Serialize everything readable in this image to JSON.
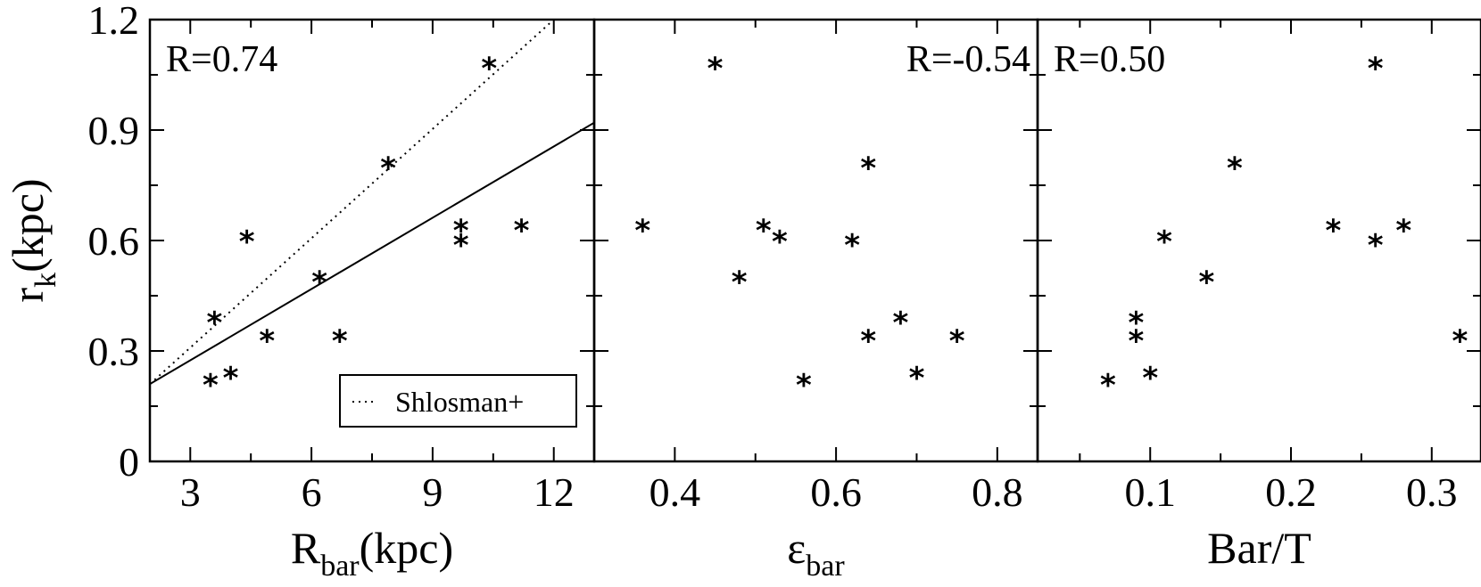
{
  "chart_data": [
    {
      "type": "scatter",
      "xlabel": "R",
      "xlabel_sub": "bar",
      "xlabel_suffix": "(kpc)",
      "ylabel": "r",
      "ylabel_sub": "k",
      "ylabel_suffix": "(kpc)",
      "xlim": [
        2,
        13
      ],
      "ylim": [
        0,
        1.2
      ],
      "xticks": [
        3,
        6,
        9,
        12
      ],
      "xtick_labels": [
        "3",
        "6",
        "9",
        "12"
      ],
      "yticks": [
        0,
        0.3,
        0.6,
        0.9,
        1.2
      ],
      "ytick_labels": [
        "0",
        "0.3",
        "0.6",
        "0.9",
        "1.2"
      ],
      "annotation": "R=0.74",
      "annotation_pos": "top-left",
      "legend": [
        {
          "label": "Shlosman+",
          "style": "dotted"
        }
      ],
      "legend_pos": "bottom-right",
      "lines": [
        {
          "style": "dotted",
          "x": [
            2,
            12
          ],
          "y": [
            0.21,
            1.2
          ]
        },
        {
          "style": "solid",
          "x": [
            2,
            13
          ],
          "y": [
            0.21,
            0.92
          ]
        }
      ],
      "points": [
        {
          "x": 3.5,
          "y": 0.21
        },
        {
          "x": 3.6,
          "y": 0.38
        },
        {
          "x": 4.0,
          "y": 0.23
        },
        {
          "x": 4.4,
          "y": 0.6
        },
        {
          "x": 4.9,
          "y": 0.33
        },
        {
          "x": 6.2,
          "y": 0.49
        },
        {
          "x": 6.7,
          "y": 0.33
        },
        {
          "x": 7.9,
          "y": 0.8
        },
        {
          "x": 9.7,
          "y": 0.63
        },
        {
          "x": 9.7,
          "y": 0.59
        },
        {
          "x": 10.4,
          "y": 1.07
        },
        {
          "x": 11.2,
          "y": 0.63
        }
      ]
    },
    {
      "type": "scatter",
      "xlabel": "ε",
      "xlabel_sub": "bar",
      "xlabel_suffix": "",
      "xlim": [
        0.3,
        0.85
      ],
      "ylim": [
        0,
        1.2
      ],
      "xticks": [
        0.4,
        0.6,
        0.8
      ],
      "xtick_labels": [
        "0.4",
        "0.6",
        "0.8"
      ],
      "yticks": [
        0,
        0.3,
        0.6,
        0.9,
        1.2
      ],
      "annotation": "R=-0.54",
      "annotation_pos": "top-right",
      "points": [
        {
          "x": 0.36,
          "y": 0.63
        },
        {
          "x": 0.45,
          "y": 1.07
        },
        {
          "x": 0.48,
          "y": 0.49
        },
        {
          "x": 0.51,
          "y": 0.63
        },
        {
          "x": 0.53,
          "y": 0.6
        },
        {
          "x": 0.56,
          "y": 0.21
        },
        {
          "x": 0.62,
          "y": 0.59
        },
        {
          "x": 0.64,
          "y": 0.8
        },
        {
          "x": 0.64,
          "y": 0.33
        },
        {
          "x": 0.68,
          "y": 0.38
        },
        {
          "x": 0.7,
          "y": 0.23
        },
        {
          "x": 0.75,
          "y": 0.33
        }
      ]
    },
    {
      "type": "scatter",
      "xlabel": "Bar/T",
      "xlabel_sub": "",
      "xlabel_suffix": "",
      "xlim": [
        0.02,
        0.335
      ],
      "ylim": [
        0,
        1.2
      ],
      "xticks": [
        0.1,
        0.2,
        0.3
      ],
      "xtick_labels": [
        "0.1",
        "0.2",
        "0.3"
      ],
      "yticks": [
        0,
        0.3,
        0.6,
        0.9,
        1.2
      ],
      "annotation": "R=0.50",
      "annotation_pos": "top-left",
      "points": [
        {
          "x": 0.07,
          "y": 0.21
        },
        {
          "x": 0.09,
          "y": 0.38
        },
        {
          "x": 0.09,
          "y": 0.33
        },
        {
          "x": 0.1,
          "y": 0.23
        },
        {
          "x": 0.11,
          "y": 0.6
        },
        {
          "x": 0.14,
          "y": 0.49
        },
        {
          "x": 0.16,
          "y": 0.8
        },
        {
          "x": 0.23,
          "y": 0.63
        },
        {
          "x": 0.26,
          "y": 1.07
        },
        {
          "x": 0.26,
          "y": 0.59
        },
        {
          "x": 0.28,
          "y": 0.63
        },
        {
          "x": 0.32,
          "y": 0.33
        }
      ]
    }
  ]
}
